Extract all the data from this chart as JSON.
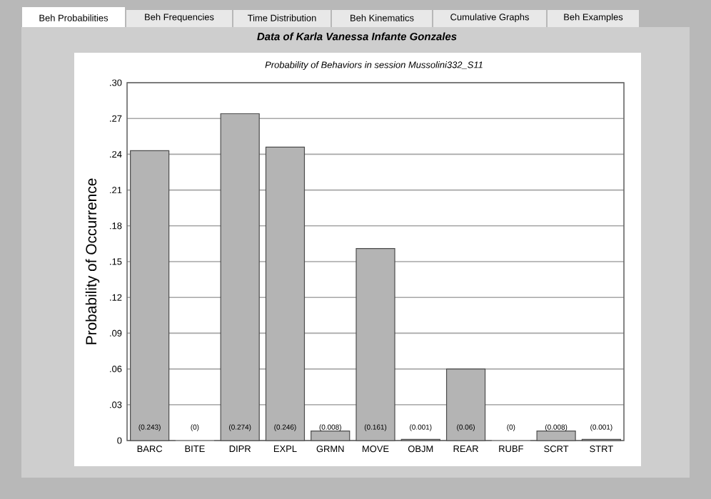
{
  "chart_data": {
    "type": "bar",
    "title": "Data of Karla Vanessa Infante Gonzales",
    "subtitle": "Probability of Behaviors in session Mussolini332_S11",
    "ylabel": "Probability of Occurrence",
    "categories": [
      "BARC",
      "BITE",
      "DIPR",
      "EXPL",
      "GRMN",
      "MOVE",
      "OBJM",
      "REAR",
      "RUBF",
      "SCRT",
      "STRT"
    ],
    "values": [
      0.243,
      0,
      0.274,
      0.246,
      0.008,
      0.161,
      0.001,
      0.06,
      0,
      0.008,
      0.001
    ],
    "value_labels": [
      "(0.243)",
      "(0)",
      "(0.274)",
      "(0.246)",
      "(0.008)",
      "(0.161)",
      "(0.001)",
      "(0.06)",
      "(0)",
      "(0.008)",
      "(0.001)"
    ],
    "color": "#b4b4b4",
    "ylim": [
      0,
      0.3
    ],
    "yticks": [
      {
        "value": 0,
        "label": "0"
      },
      {
        "value": 0.03,
        "label": ".03"
      },
      {
        "value": 0.06,
        "label": ".06"
      },
      {
        "value": 0.09,
        "label": ".09"
      },
      {
        "value": 0.12,
        "label": ".12"
      },
      {
        "value": 0.15,
        "label": ".15"
      },
      {
        "value": 0.18,
        "label": ".18"
      },
      {
        "value": 0.21,
        "label": ".21"
      },
      {
        "value": 0.24,
        "label": ".24"
      },
      {
        "value": 0.27,
        "label": ".27"
      },
      {
        "value": 0.3,
        "label": ".30"
      }
    ],
    "grid": "y",
    "annotations": [
      "Beh Probabilities",
      "Beh Frequencies",
      "Time Distribution",
      "Beh Kinematics",
      "Cumulative Graphs",
      "Beh Examples"
    ]
  }
}
